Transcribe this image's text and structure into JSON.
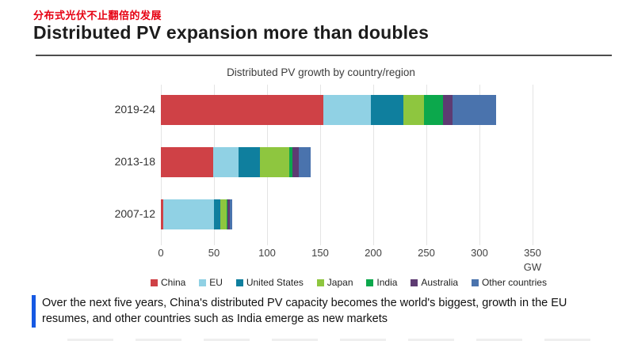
{
  "page": {
    "subtitle_cn": "分布式光伏不止翻倍的发展",
    "title": "Distributed PV expansion more than doubles",
    "caption": "Over the next five years, China's distributed PV capacity becomes the world's biggest, growth in the EU resumes, and other countries such as India emerge as new markets"
  },
  "chart_data": {
    "type": "bar",
    "orientation": "horizontal",
    "stacked": true,
    "title": "Distributed PV growth by country/region",
    "unit_label": "GW",
    "categories": [
      "2019-24",
      "2013-18",
      "2007-12"
    ],
    "series": [
      {
        "name": "China",
        "color": "#cf4146",
        "values": [
          153,
          49,
          2
        ]
      },
      {
        "name": "EU",
        "color": "#90d1e4",
        "values": [
          45,
          24,
          48
        ]
      },
      {
        "name": "United States",
        "color": "#0f7f9e",
        "values": [
          30,
          20,
          6
        ]
      },
      {
        "name": "Japan",
        "color": "#8ec63f",
        "values": [
          20,
          28,
          6
        ]
      },
      {
        "name": "India",
        "color": "#0ca84c",
        "values": [
          18,
          3,
          1
        ]
      },
      {
        "name": "Australia",
        "color": "#5e3b72",
        "values": [
          9,
          6,
          2
        ]
      },
      {
        "name": "Other countries",
        "color": "#4a73ad",
        "values": [
          41,
          11,
          2
        ]
      }
    ],
    "totals": [
      316,
      141,
      67
    ],
    "x_axis": {
      "ticks": [
        0,
        50,
        100,
        150,
        200,
        250,
        300,
        350
      ],
      "max": 350,
      "label": "GW"
    },
    "legend_position": "bottom",
    "grid": true
  }
}
